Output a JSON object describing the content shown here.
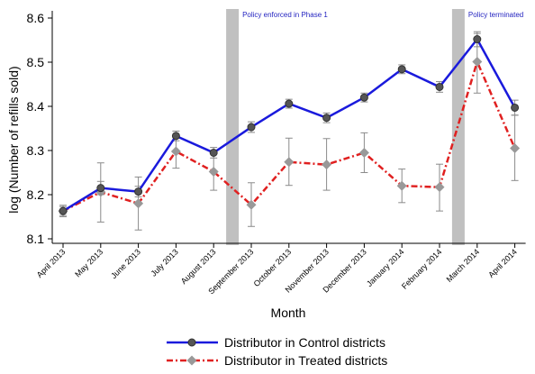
{
  "chart_data": {
    "type": "line",
    "xlabel": "Month",
    "ylabel": "log (Number of refills sold)",
    "categories": [
      "April 2013",
      "May 2013",
      "June 2013",
      "July 2013",
      "August 2013",
      "September 2013",
      "October 2013",
      "November 2013",
      "December 2013",
      "January 2014",
      "February 2014",
      "March 2014",
      "April 2014"
    ],
    "ylim": [
      8.09,
      8.61
    ],
    "yticks": [
      "8.1",
      "8.2",
      "8.3",
      "8.4",
      "8.5",
      "8.6"
    ],
    "series": [
      {
        "name": "Distributor in Control districts",
        "color": "#1a1adc",
        "marker": "circle",
        "values": [
          8.163,
          8.215,
          8.207,
          8.333,
          8.295,
          8.353,
          8.406,
          8.374,
          8.42,
          8.484,
          8.444,
          8.552,
          8.397
        ],
        "ci_low": [
          8.153,
          8.2,
          8.195,
          8.322,
          8.283,
          8.341,
          8.396,
          8.363,
          8.41,
          8.474,
          8.432,
          8.535,
          8.38
        ],
        "ci_high": [
          8.173,
          8.23,
          8.219,
          8.344,
          8.307,
          8.365,
          8.416,
          8.385,
          8.43,
          8.494,
          8.456,
          8.569,
          8.414
        ]
      },
      {
        "name": "Distributor in Treated districts",
        "color": "#e02020",
        "marker": "diamond",
        "values": [
          8.163,
          8.206,
          8.18,
          8.298,
          8.252,
          8.177,
          8.274,
          8.268,
          8.295,
          8.22,
          8.217,
          8.501,
          8.305
        ],
        "ci_low": [
          8.15,
          8.138,
          8.12,
          8.26,
          8.21,
          8.128,
          8.221,
          8.21,
          8.25,
          8.182,
          8.163,
          8.43,
          8.232
        ],
        "ci_high": [
          8.176,
          8.272,
          8.24,
          8.335,
          8.293,
          8.227,
          8.328,
          8.327,
          8.34,
          8.258,
          8.269,
          8.565,
          8.38
        ]
      }
    ],
    "shaded_periods": [
      {
        "between": [
          "August 2013",
          "September 2013"
        ],
        "label": "Policy enforced in Phase 1"
      },
      {
        "between": [
          "February 2014",
          "March 2014"
        ],
        "label": "Policy terminated"
      }
    ],
    "legend": {
      "position": "bottom"
    },
    "grid": false
  }
}
